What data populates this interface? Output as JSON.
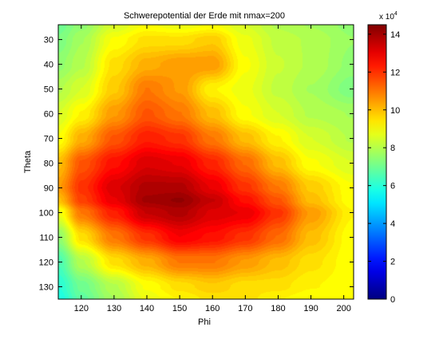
{
  "chart_data": {
    "type": "heatmap",
    "title": "Schwerepotential der Erde mit nmax=200",
    "xlabel": "Phi",
    "ylabel": "Theta",
    "xlim": [
      113,
      203
    ],
    "ylim": [
      24,
      135
    ],
    "y_reversed": true,
    "x_ticks": [
      120,
      130,
      140,
      150,
      160,
      170,
      180,
      190,
      200
    ],
    "y_ticks": [
      30,
      40,
      50,
      60,
      70,
      80,
      90,
      100,
      110,
      120,
      130
    ],
    "colorbar": {
      "colormap": "jet",
      "range": [
        0,
        14.5
      ],
      "ticks": [
        0,
        2,
        4,
        6,
        8,
        10,
        12,
        14
      ],
      "multiplier": "x 10",
      "exponent": "4"
    },
    "peak": {
      "phi": 148,
      "theta": 95,
      "value": 14.2
    },
    "field_samples": {
      "phi": [
        113,
        120,
        130,
        140,
        150,
        160,
        170,
        180,
        190,
        203
      ],
      "theta": [
        24,
        30,
        40,
        50,
        60,
        70,
        80,
        90,
        95,
        100,
        110,
        120,
        130,
        135
      ],
      "values": [
        [
          7.0,
          7.5,
          8.5,
          9.0,
          8.8,
          9.0,
          8.5,
          8.0,
          7.8,
          7.5
        ],
        [
          7.2,
          7.8,
          9.0,
          9.5,
          9.5,
          9.8,
          8.8,
          8.2,
          8.0,
          7.6
        ],
        [
          7.5,
          8.0,
          9.5,
          10.2,
          10.5,
          10.5,
          9.0,
          8.3,
          8.0,
          7.5
        ],
        [
          8.0,
          8.5,
          9.8,
          11.0,
          10.5,
          9.2,
          8.8,
          8.2,
          7.8,
          7.2
        ],
        [
          8.5,
          9.2,
          10.5,
          11.5,
          11.0,
          10.0,
          9.0,
          8.5,
          8.0,
          7.8
        ],
        [
          9.0,
          10.2,
          11.5,
          12.3,
          12.0,
          11.0,
          10.0,
          9.2,
          8.5,
          8.0
        ],
        [
          10.0,
          11.5,
          12.5,
          13.2,
          13.0,
          12.2,
          11.2,
          10.0,
          9.0,
          8.5
        ],
        [
          10.5,
          12.0,
          13.2,
          13.8,
          13.8,
          13.0,
          12.0,
          11.0,
          9.8,
          9.0
        ],
        [
          10.0,
          11.8,
          13.0,
          14.0,
          14.2,
          13.5,
          12.5,
          11.5,
          10.0,
          9.0
        ],
        [
          8.8,
          11.0,
          12.3,
          13.5,
          13.8,
          13.2,
          13.0,
          12.0,
          10.5,
          9.2
        ],
        [
          7.5,
          9.5,
          11.0,
          12.0,
          12.8,
          12.5,
          12.0,
          11.2,
          10.0,
          9.0
        ],
        [
          6.5,
          8.0,
          9.5,
          10.2,
          11.0,
          11.0,
          10.5,
          10.0,
          9.5,
          9.0
        ],
        [
          6.0,
          7.0,
          8.0,
          9.0,
          9.5,
          9.8,
          9.5,
          9.5,
          9.2,
          9.0
        ],
        [
          5.8,
          6.8,
          7.8,
          8.8,
          9.2,
          9.5,
          9.5,
          9.2,
          9.0,
          9.0
        ]
      ]
    }
  }
}
